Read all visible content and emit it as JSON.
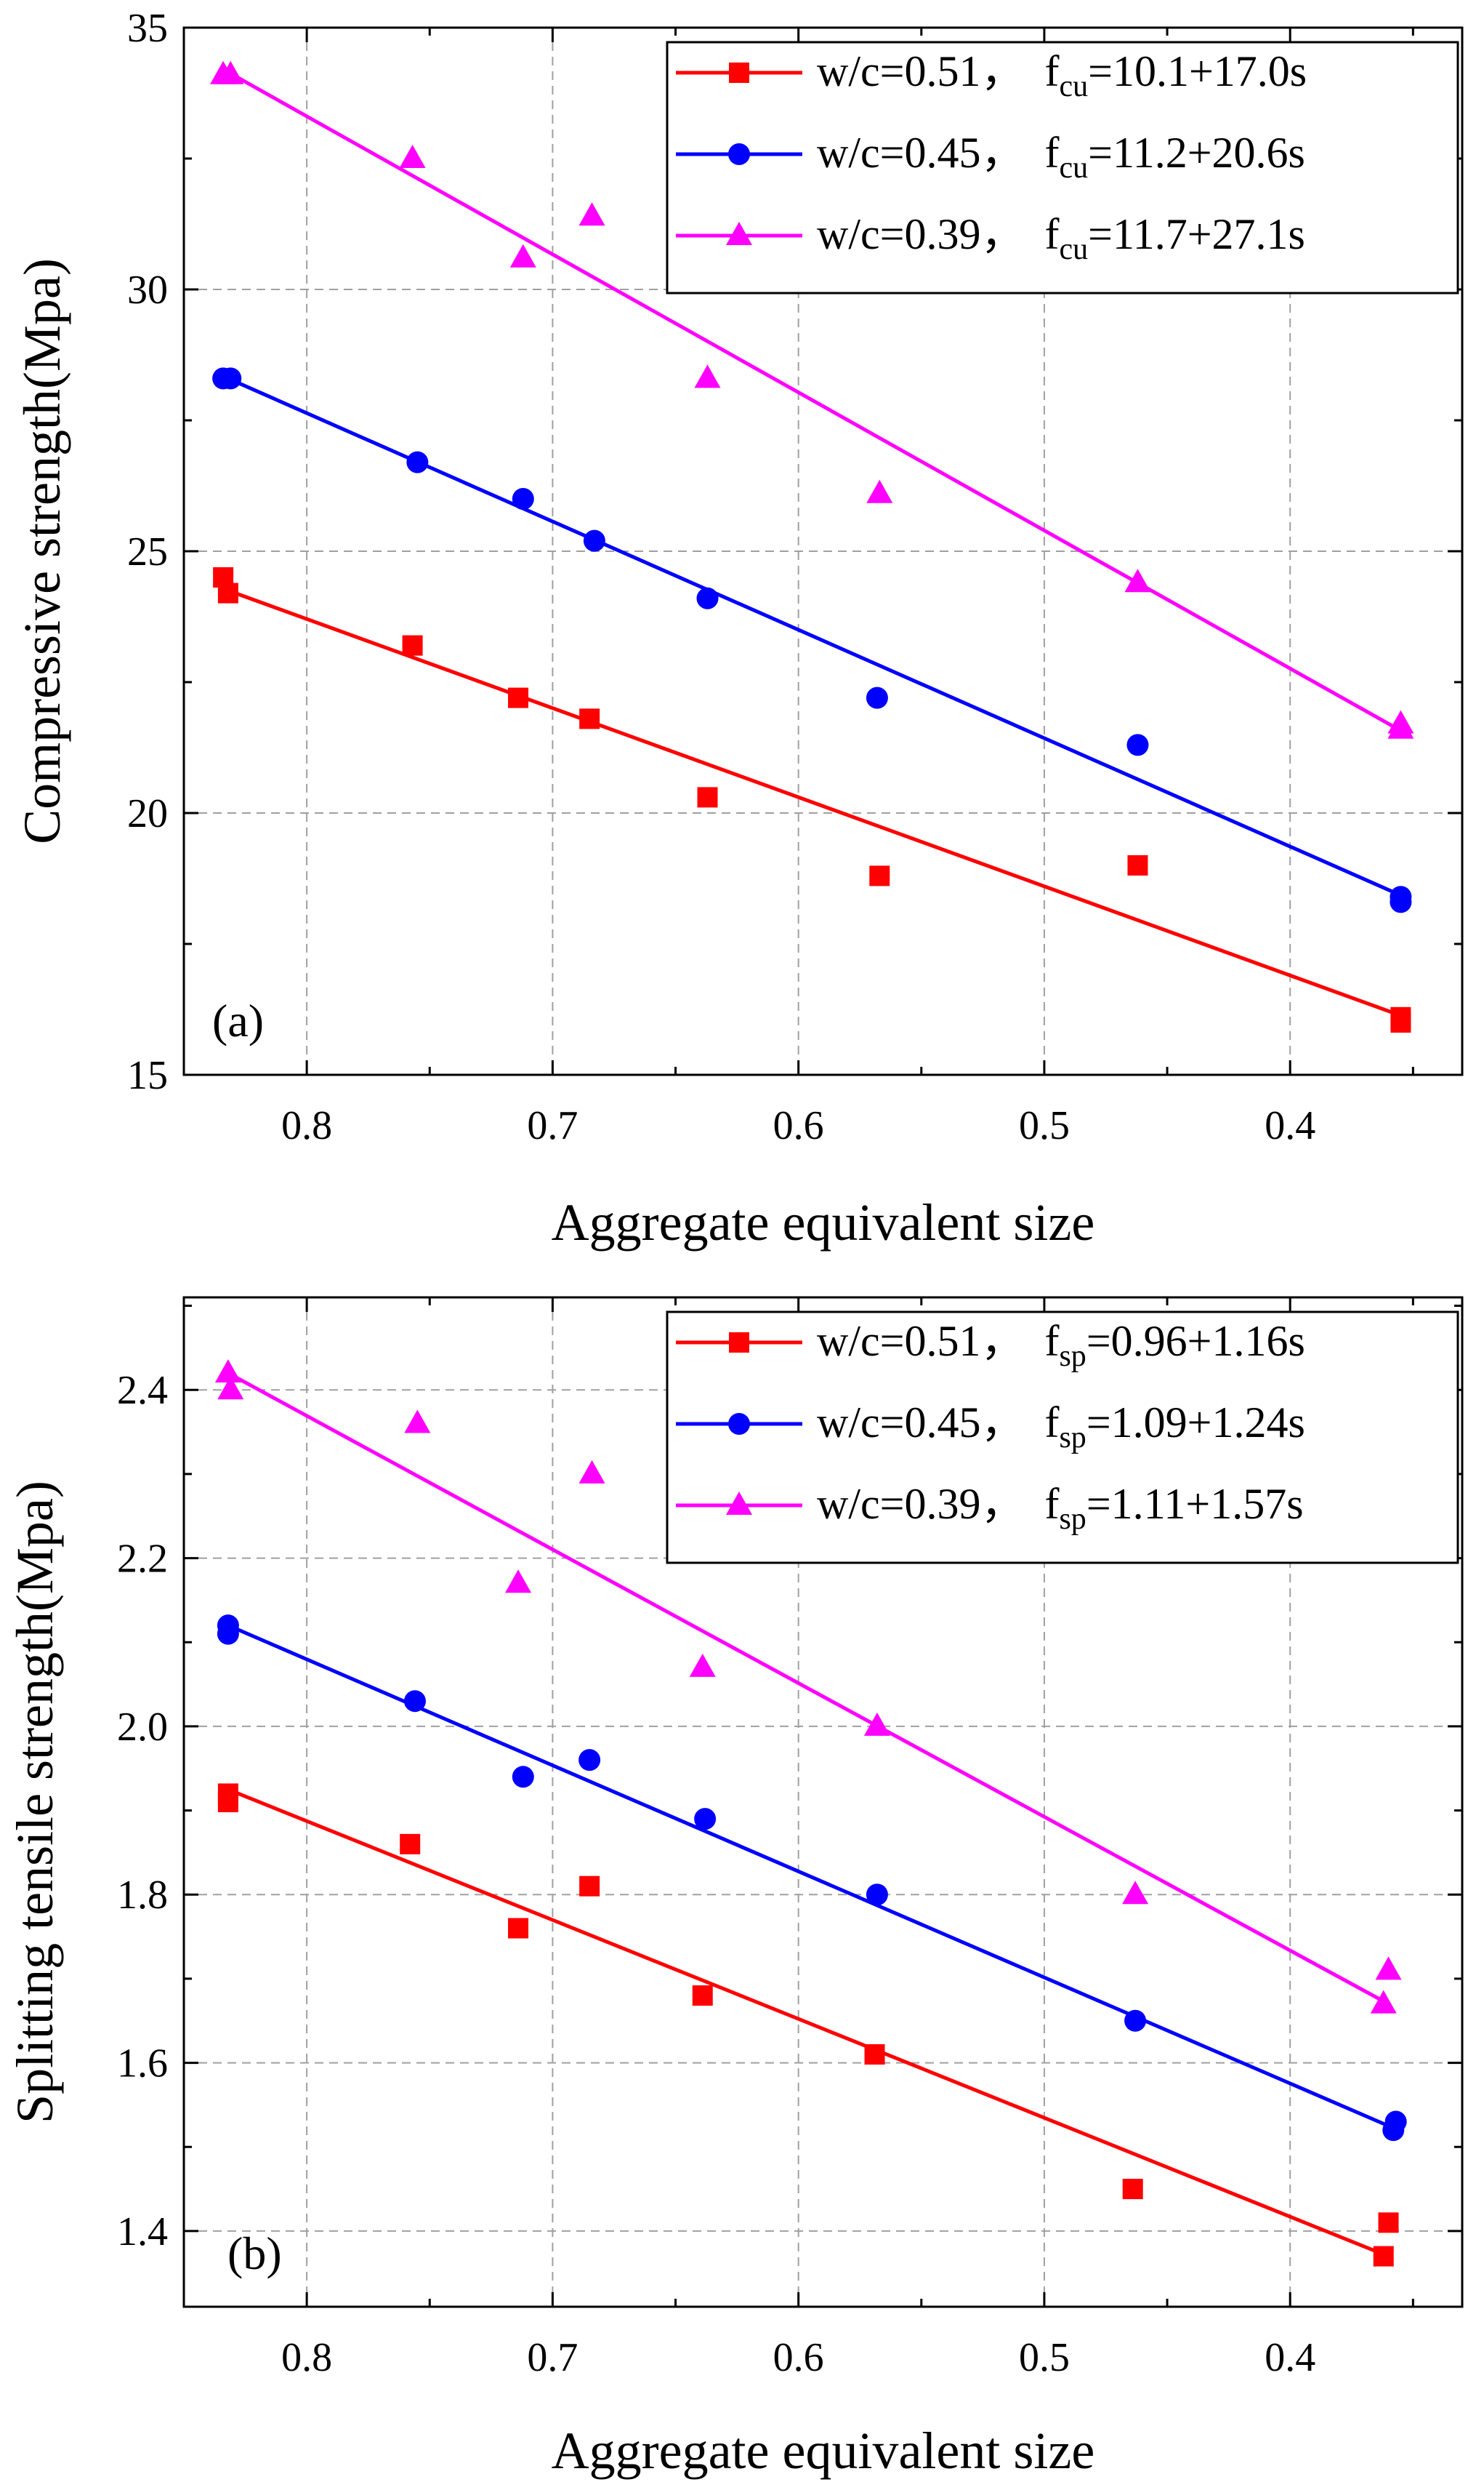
{
  "chart_data": [
    {
      "type": "scatter",
      "panel_label": "(a)",
      "title": "",
      "xlabel": "Aggregate equivalent size",
      "ylabel": "Compressive strength(Mpa)",
      "xlim": [
        0.85,
        0.33
      ],
      "ylim": [
        15,
        35
      ],
      "x_reversed": true,
      "xticks": [
        0.8,
        0.7,
        0.6,
        0.5,
        0.4
      ],
      "xtick_labels": [
        "0.8",
        "0.7",
        "0.6",
        "0.5",
        "0.4"
      ],
      "yticks": [
        15,
        20,
        25,
        30,
        35
      ],
      "ytick_labels": [
        "15",
        "20",
        "25",
        "30",
        "35"
      ],
      "grid": true,
      "legend_position": "top-right",
      "series": [
        {
          "name": "w/c=0.51",
          "fit_prefix": "f",
          "fit_sub": "cu",
          "fit_rhs": "=10.1+17.0s",
          "color": "#ff0000",
          "marker": "square",
          "x": [
            0.834,
            0.832,
            0.757,
            0.714,
            0.685,
            0.637,
            0.567,
            0.462,
            0.355,
            0.355
          ],
          "y": [
            24.5,
            24.2,
            23.2,
            22.2,
            21.8,
            20.3,
            18.8,
            19.0,
            16.1,
            16.0
          ],
          "fit_line": [
            [
              0.832,
              24.25
            ],
            [
              0.356,
              16.15
            ]
          ]
        },
        {
          "name": "w/c=0.45",
          "fit_prefix": "f",
          "fit_sub": "cu",
          "fit_rhs": "=11.2+20.6s",
          "color": "#0000ff",
          "marker": "circle",
          "x": [
            0.834,
            0.831,
            0.755,
            0.712,
            0.683,
            0.637,
            0.568,
            0.462,
            0.355,
            0.355
          ],
          "y": [
            28.3,
            28.3,
            26.7,
            26.0,
            25.2,
            24.1,
            22.2,
            21.3,
            18.4,
            18.3
          ],
          "fit_line": [
            [
              0.832,
              28.3
            ],
            [
              0.356,
              18.45
            ]
          ]
        },
        {
          "name": "w/c=0.39",
          "fit_prefix": "f",
          "fit_sub": "cu",
          "fit_rhs": "=11.7+27.1s",
          "color": "#ff00ff",
          "marker": "triangle",
          "x": [
            0.834,
            0.831,
            0.757,
            0.712,
            0.684,
            0.637,
            0.567,
            0.462,
            0.355,
            0.355
          ],
          "y": [
            34.1,
            34.1,
            32.5,
            30.6,
            31.4,
            28.3,
            26.1,
            24.4,
            21.7,
            21.6
          ],
          "fit_line": [
            [
              0.832,
              34.15
            ],
            [
              0.356,
              21.6
            ]
          ]
        }
      ]
    },
    {
      "type": "scatter",
      "panel_label": "(b)",
      "title": "",
      "xlabel": "Aggregate equivalent size",
      "ylabel": "Splitting tensile strength(Mpa)",
      "xlim": [
        0.85,
        0.33
      ],
      "ylim": [
        1.31,
        2.51
      ],
      "x_reversed": true,
      "xticks": [
        0.8,
        0.7,
        0.6,
        0.5,
        0.4
      ],
      "xtick_labels": [
        "0.8",
        "0.7",
        "0.6",
        "0.5",
        "0.4"
      ],
      "yticks": [
        1.4,
        1.6,
        1.8,
        2.0,
        2.2,
        2.4
      ],
      "ytick_labels": [
        "1.4",
        "1.6",
        "1.8",
        "2.0",
        "2.2",
        "2.4"
      ],
      "grid": true,
      "legend_position": "top-right",
      "series": [
        {
          "name": "w/c=0.51",
          "fit_prefix": "f",
          "fit_sub": "sp",
          "fit_rhs": "=0.96+1.16s",
          "color": "#ff0000",
          "marker": "square",
          "x": [
            0.832,
            0.832,
            0.758,
            0.714,
            0.685,
            0.639,
            0.569,
            0.464,
            0.36,
            0.362
          ],
          "y": [
            1.92,
            1.91,
            1.86,
            1.76,
            1.81,
            1.68,
            1.61,
            1.45,
            1.41,
            1.37
          ],
          "fit_line": [
            [
              0.832,
              1.925
            ],
            [
              0.36,
              1.37
            ]
          ]
        },
        {
          "name": "w/c=0.45",
          "fit_prefix": "f",
          "fit_sub": "sp",
          "fit_rhs": "=1.09+1.24s",
          "color": "#0000ff",
          "marker": "circle",
          "x": [
            0.832,
            0.832,
            0.756,
            0.712,
            0.685,
            0.638,
            0.568,
            0.463,
            0.358,
            0.357
          ],
          "y": [
            2.12,
            2.11,
            2.03,
            1.94,
            1.96,
            1.89,
            1.8,
            1.65,
            1.52,
            1.53
          ],
          "fit_line": [
            [
              0.832,
              2.12
            ],
            [
              0.356,
              1.52
            ]
          ]
        },
        {
          "name": "w/c=0.39",
          "fit_prefix": "f",
          "fit_sub": "sp",
          "fit_rhs": "=1.11+1.57s",
          "color": "#ff00ff",
          "marker": "triangle",
          "x": [
            0.832,
            0.831,
            0.755,
            0.714,
            0.684,
            0.639,
            0.568,
            0.463,
            0.362,
            0.36
          ],
          "y": [
            2.42,
            2.4,
            2.36,
            2.17,
            2.3,
            2.07,
            2.0,
            1.8,
            1.67,
            1.71
          ],
          "fit_line": [
            [
              0.832,
              2.42
            ],
            [
              0.36,
              1.67
            ]
          ]
        }
      ]
    }
  ]
}
